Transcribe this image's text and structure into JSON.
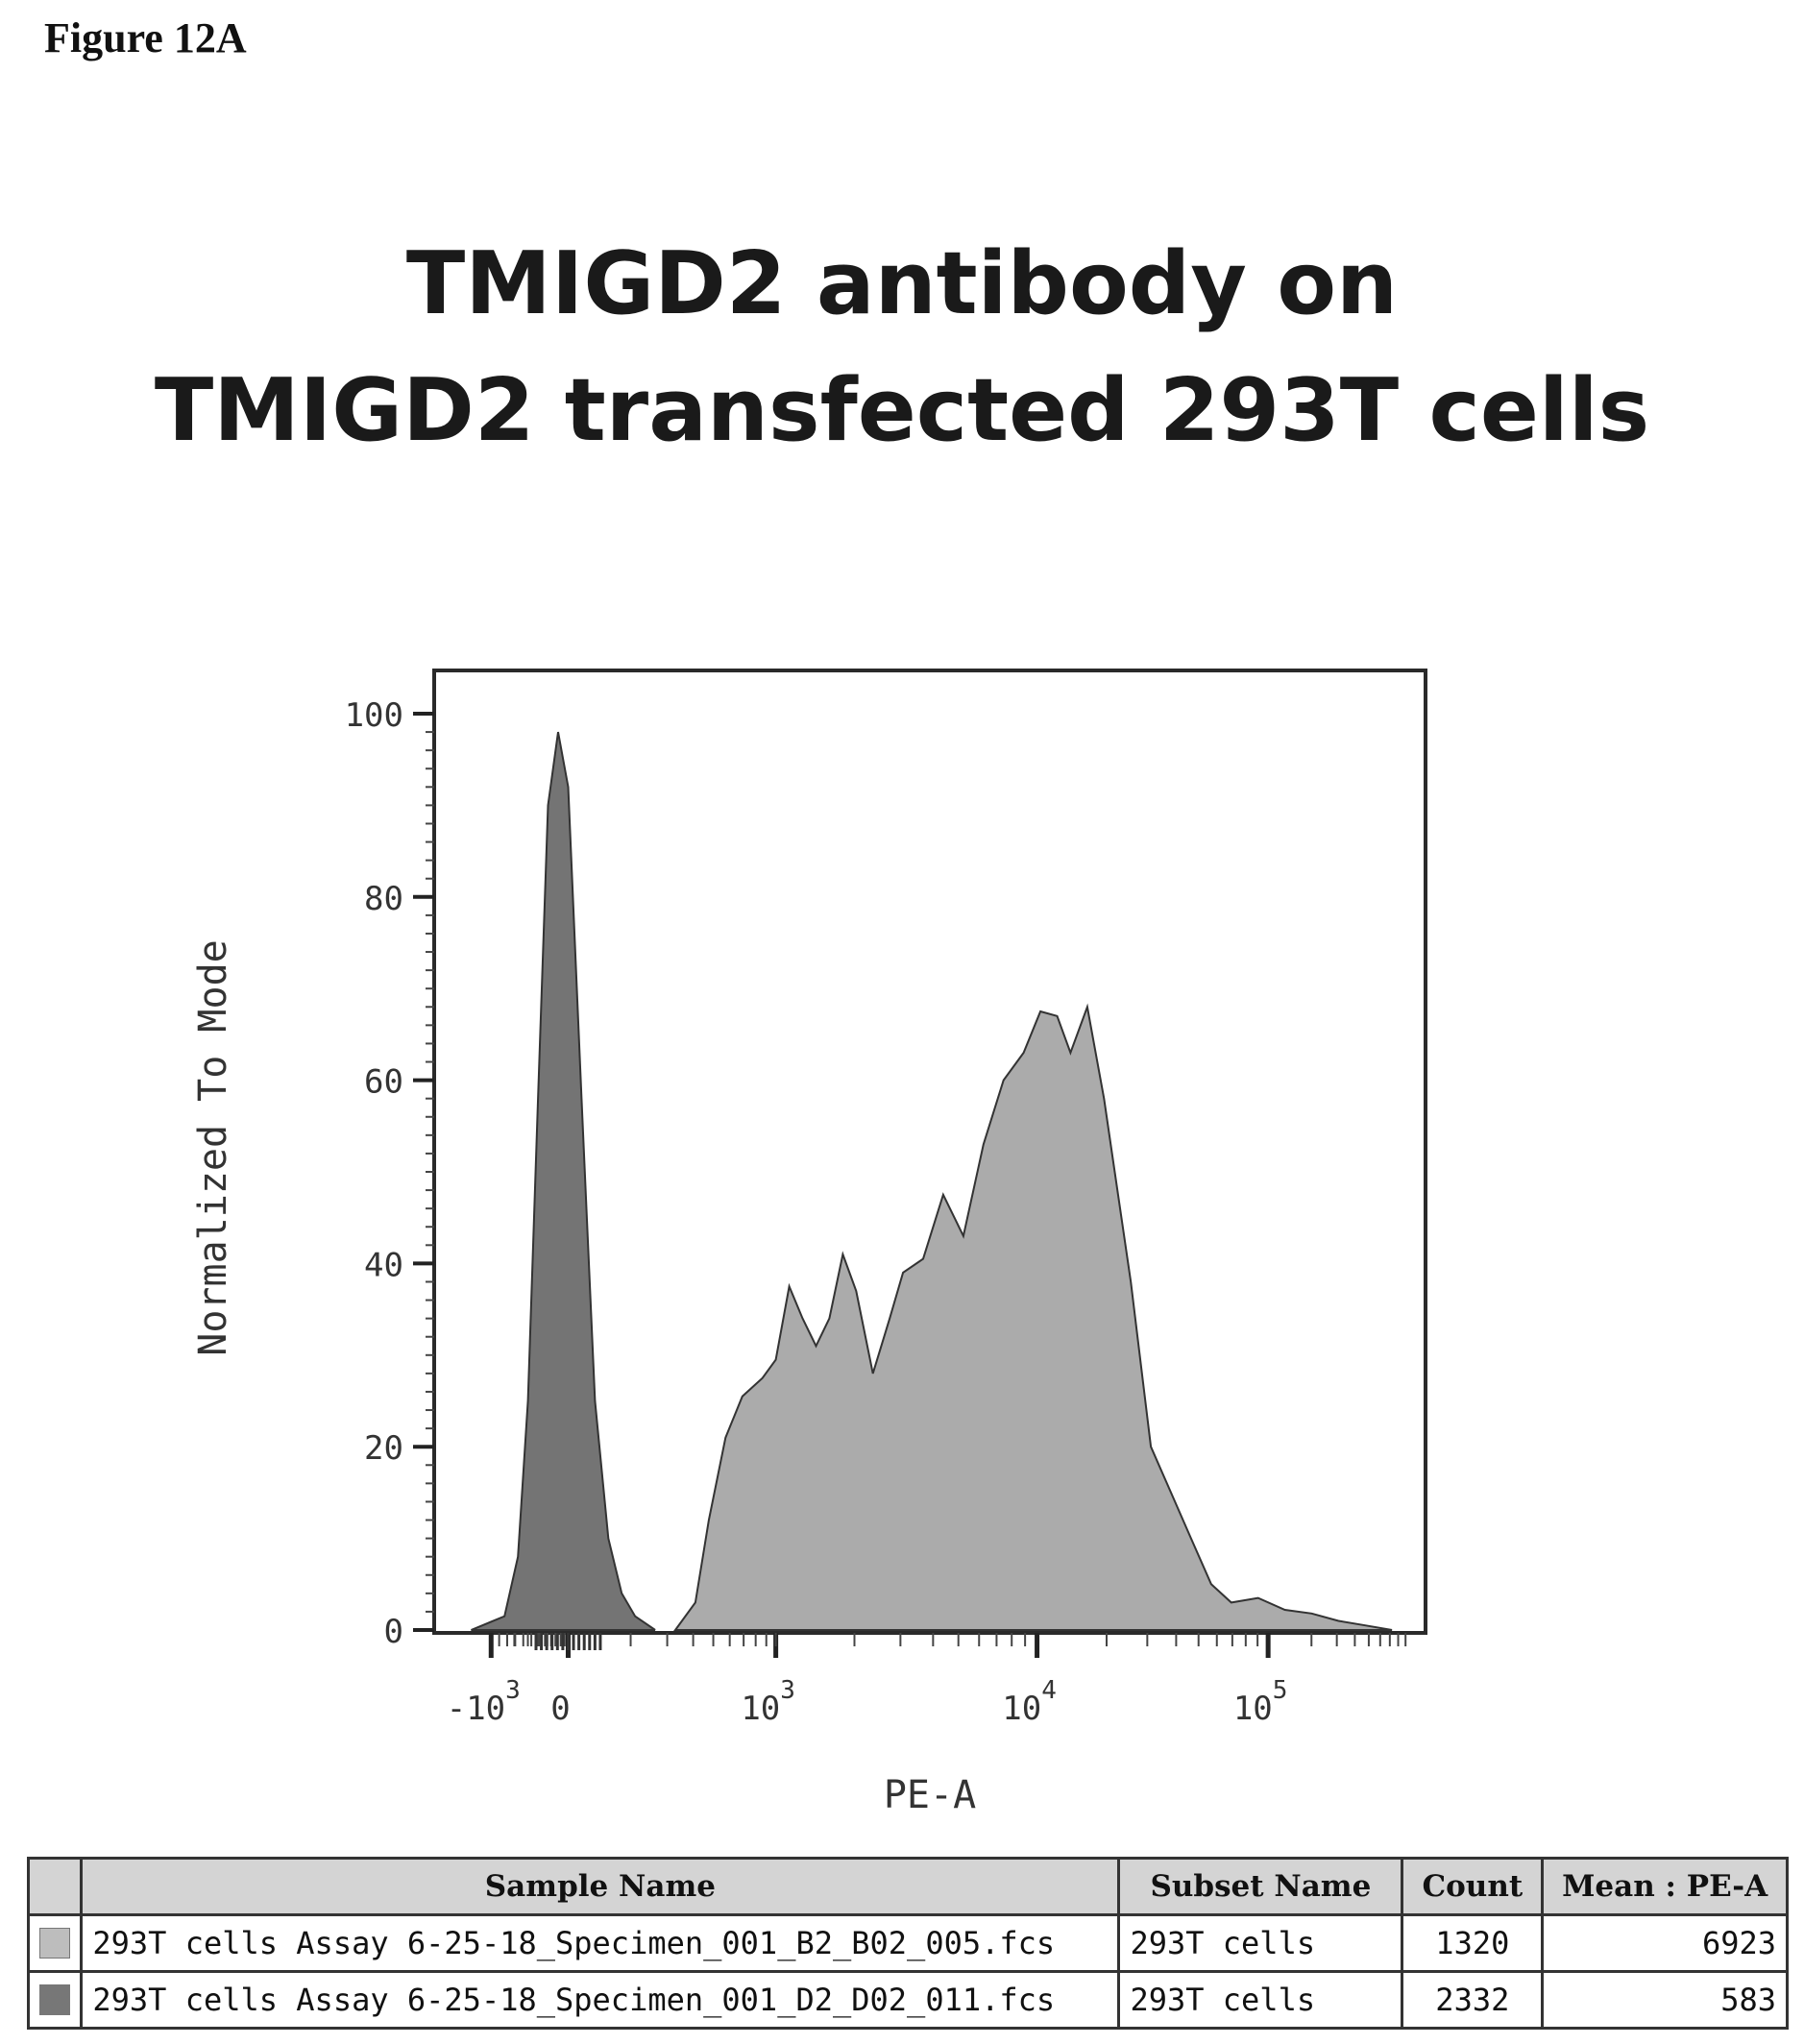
{
  "figure_label": "Figure 12A",
  "chart_data": {
    "type": "area",
    "title_lines": [
      "TMIGD2 antibody on",
      "TMIGD2 transfected 293T cells"
    ],
    "xlabel": "PE-A",
    "ylabel": "Normalized To Mode",
    "x_scale": "biexponential",
    "x_ticks": [
      {
        "base": "-10",
        "exp": "3",
        "value": -1000
      },
      {
        "base": "0",
        "exp": "",
        "value": 0
      },
      {
        "base": "10",
        "exp": "3",
        "value": 1000
      },
      {
        "base": "10",
        "exp": "4",
        "value": 10000
      },
      {
        "base": "10",
        "exp": "5",
        "value": 100000
      }
    ],
    "y_ticks": [
      "0",
      "20",
      "40",
      "60",
      "80",
      "100"
    ],
    "ylim": [
      0,
      105
    ],
    "grid": false,
    "series": [
      {
        "color": "#a2a2a2",
        "points": [
          [
            3.6,
            0
          ],
          [
            3.9,
            3
          ],
          [
            4.1,
            12
          ],
          [
            4.35,
            21
          ],
          [
            4.6,
            25.5
          ],
          [
            4.9,
            27.5
          ],
          [
            5.1,
            29.5
          ],
          [
            5.3,
            37.5
          ],
          [
            5.5,
            34
          ],
          [
            5.7,
            31
          ],
          [
            5.9,
            34
          ],
          [
            6.1,
            41
          ],
          [
            6.3,
            37
          ],
          [
            6.55,
            28
          ],
          [
            6.8,
            34
          ],
          [
            7.0,
            39
          ],
          [
            7.3,
            40.5
          ],
          [
            7.6,
            47.5
          ],
          [
            7.9,
            43
          ],
          [
            8.2,
            53
          ],
          [
            8.5,
            60
          ],
          [
            8.8,
            63
          ],
          [
            9.05,
            67.5
          ],
          [
            9.3,
            67
          ],
          [
            9.5,
            63
          ],
          [
            9.75,
            68
          ],
          [
            10.0,
            58
          ],
          [
            10.4,
            38
          ],
          [
            10.7,
            20
          ],
          [
            11.0,
            15
          ],
          [
            11.3,
            10
          ],
          [
            11.6,
            5
          ],
          [
            11.9,
            3
          ],
          [
            12.3,
            3.5
          ],
          [
            12.7,
            2.2
          ],
          [
            13.1,
            1.8
          ],
          [
            13.5,
            1.0
          ],
          [
            13.9,
            0.5
          ],
          [
            14.3,
            0
          ]
        ]
      },
      {
        "color": "#5c5c5c",
        "points": [
          [
            0.55,
            0
          ],
          [
            1.05,
            1.5
          ],
          [
            1.25,
            8
          ],
          [
            1.4,
            25
          ],
          [
            1.55,
            58
          ],
          [
            1.7,
            90
          ],
          [
            1.85,
            98
          ],
          [
            2.0,
            92
          ],
          [
            2.2,
            58
          ],
          [
            2.4,
            25
          ],
          [
            2.6,
            10
          ],
          [
            2.8,
            4
          ],
          [
            3.0,
            1.5
          ],
          [
            3.3,
            0
          ]
        ]
      }
    ]
  },
  "table": {
    "headers": [
      "",
      "Sample Name",
      "Subset Name",
      "Count",
      "Mean : PE-A"
    ],
    "rows": [
      {
        "swatch_color": "#bdbdbd",
        "sample": "293T cells Assay 6-25-18_Specimen_001_B2_B02_005.fcs",
        "subset": "293T cells",
        "count": "1320",
        "mean": "6923"
      },
      {
        "swatch_color": "#777777",
        "sample": "293T cells Assay 6-25-18_Specimen_001_D2_D02_011.fcs",
        "subset": "293T cells",
        "count": "2332",
        "mean": "583"
      }
    ]
  }
}
